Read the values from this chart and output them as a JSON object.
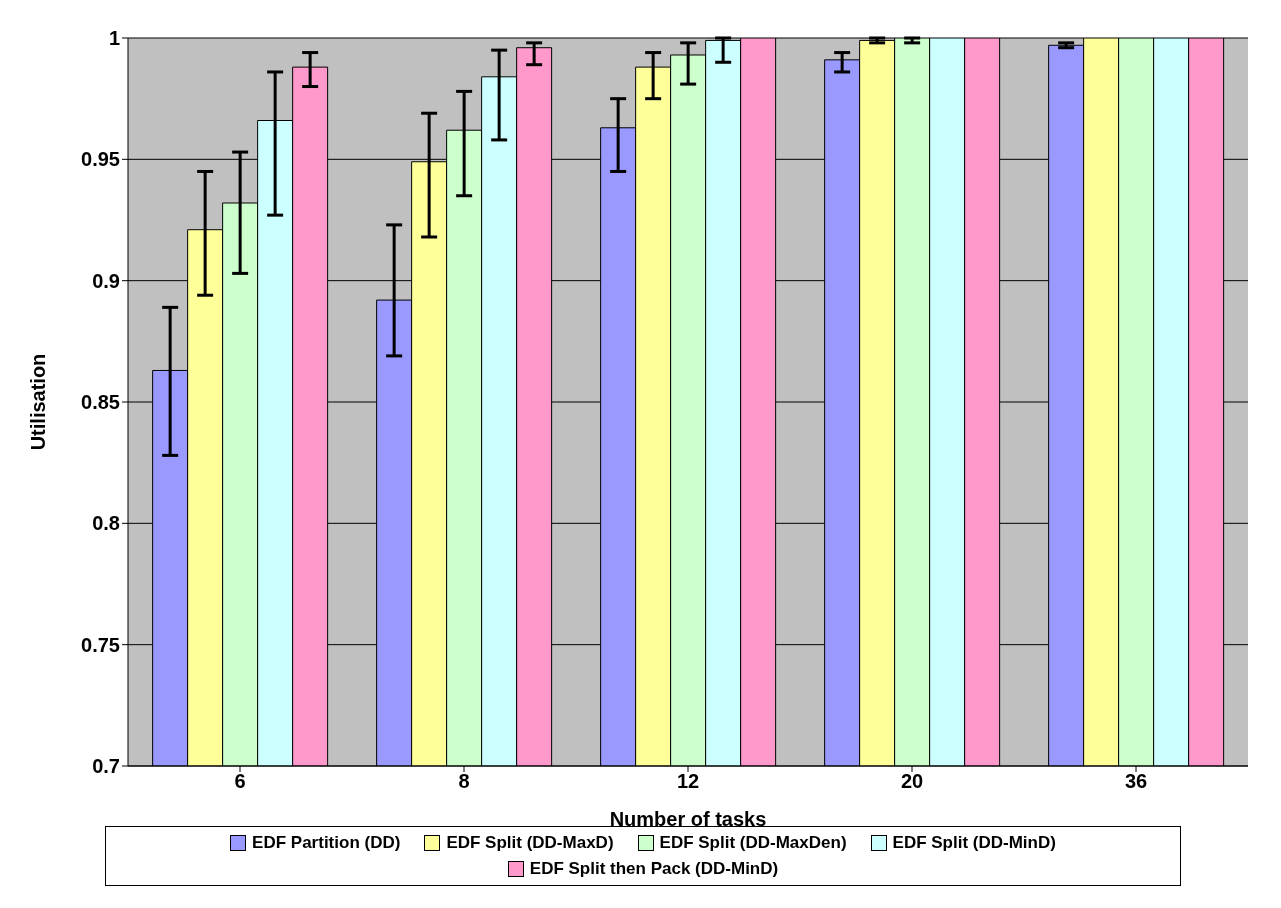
{
  "chart_data": {
    "type": "bar",
    "xlabel": "Number of tasks",
    "ylabel": "Utilisation",
    "categories": [
      "6",
      "8",
      "12",
      "20",
      "36"
    ],
    "series": [
      {
        "name": "EDF Partition (DD)",
        "color": "#9999ff",
        "values": [
          0.863,
          0.892,
          0.963,
          0.991,
          0.997
        ],
        "errors": [
          [
            0.828,
            0.889
          ],
          [
            0.869,
            0.923
          ],
          [
            0.945,
            0.975
          ],
          [
            0.986,
            0.994
          ],
          [
            0.996,
            0.998
          ]
        ]
      },
      {
        "name": "EDF Split (DD-MaxD)",
        "color": "#ffff99",
        "values": [
          0.921,
          0.949,
          0.988,
          0.999,
          1.0
        ],
        "errors": [
          [
            0.894,
            0.945
          ],
          [
            0.918,
            0.969
          ],
          [
            0.975,
            0.994
          ],
          [
            0.998,
            1.0
          ],
          null
        ]
      },
      {
        "name": "EDF Split (DD-MaxDen)",
        "color": "#ccffcc",
        "values": [
          0.932,
          0.962,
          0.993,
          1.0,
          1.0
        ],
        "errors": [
          [
            0.903,
            0.953
          ],
          [
            0.935,
            0.978
          ],
          [
            0.981,
            0.998
          ],
          [
            0.998,
            1.0
          ],
          null
        ]
      },
      {
        "name": "EDF Split (DD-MinD)",
        "color": "#ccffff",
        "values": [
          0.966,
          0.984,
          0.999,
          1.0,
          1.0
        ],
        "errors": [
          [
            0.927,
            0.986
          ],
          [
            0.958,
            0.995
          ],
          [
            0.99,
            1.0
          ],
          null,
          null
        ]
      },
      {
        "name": "EDF Split then Pack (DD-MinD)",
        "color": "#ff99cc",
        "values": [
          0.988,
          0.996,
          1.0,
          1.0,
          1.0
        ],
        "errors": [
          [
            0.98,
            0.994
          ],
          [
            0.989,
            0.998
          ],
          null,
          null,
          null
        ]
      }
    ],
    "ylim": [
      0.7,
      1
    ],
    "yticks": [
      0.7,
      0.75,
      0.8,
      0.85,
      0.9,
      0.95,
      1
    ],
    "grid": "y",
    "legend": "bottom"
  }
}
